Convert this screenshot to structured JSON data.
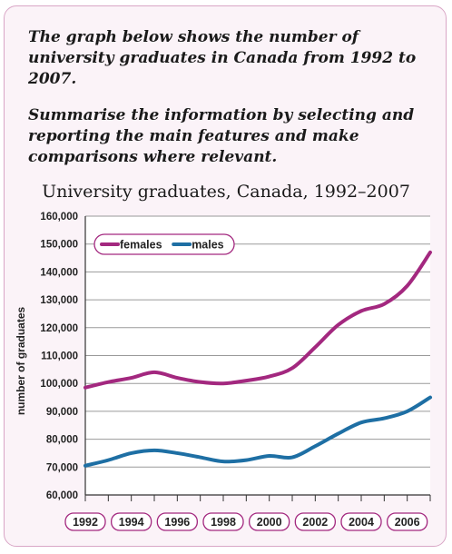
{
  "prompt": {
    "line1": "The graph below shows the number of university graduates in Canada from 1992 to 2007.",
    "line2": "Summarise the information by selecting and reporting the main features and make comparisons where relevant."
  },
  "colors": {
    "females": "#a3287f",
    "males": "#1e6fa4",
    "frame": "#d9a6c6",
    "panel": "#fbf3f8"
  },
  "chart_data": {
    "type": "line",
    "title": "University graduates, Canada, 1992–2007",
    "ylabel": "number of graduates",
    "xlabel": "",
    "ylim": [
      60000,
      160000
    ],
    "xlim": [
      1992,
      2007
    ],
    "yticks": [
      "60,000",
      "70,000",
      "80,000",
      "90,000",
      "100,000",
      "110,000",
      "120,000",
      "130,000",
      "140,000",
      "150,000",
      "160,000"
    ],
    "xticks": [
      "1992",
      "1994",
      "1996",
      "1998",
      "2000",
      "2002",
      "2004",
      "2006"
    ],
    "grid": "horizontal",
    "legend": "top-left",
    "x": [
      1992,
      1993,
      1994,
      1995,
      1996,
      1997,
      1998,
      1999,
      2000,
      2001,
      2002,
      2003,
      2004,
      2005,
      2006,
      2007
    ],
    "series": [
      {
        "name": "females",
        "values": [
          98500,
          100500,
          102000,
          104000,
          102000,
          100500,
          100000,
          101000,
          102500,
          105500,
          113000,
          121000,
          126000,
          128500,
          135000,
          147000
        ]
      },
      {
        "name": "males",
        "values": [
          70500,
          72500,
          75000,
          76000,
          75000,
          73500,
          72000,
          72500,
          74000,
          73500,
          77500,
          82000,
          86000,
          87500,
          90000,
          95000
        ]
      }
    ]
  }
}
